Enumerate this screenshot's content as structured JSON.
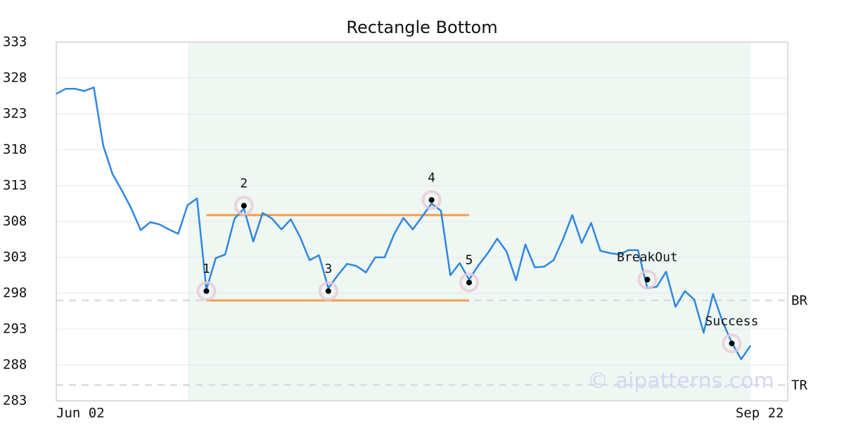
{
  "chart_data": {
    "type": "line",
    "title": "Rectangle Bottom",
    "categories": [
      "Jun 02",
      null,
      null,
      null,
      null,
      null,
      null,
      null,
      null,
      null,
      null,
      null,
      null,
      null,
      null,
      null,
      null,
      null,
      null,
      null,
      null,
      null,
      null,
      null,
      null,
      null,
      null,
      null,
      null,
      null,
      null,
      null,
      null,
      null,
      null,
      null,
      null,
      null,
      null,
      null,
      null,
      null,
      null,
      null,
      null,
      null,
      null,
      null,
      null,
      null,
      null,
      null,
      null,
      null,
      null,
      null,
      null,
      null,
      null,
      null,
      null,
      null,
      null,
      null,
      null,
      null,
      null,
      null,
      null,
      null,
      null,
      null,
      null,
      null,
      "Sep 22"
    ],
    "series": [
      {
        "color": "#2f86e0",
        "values": [
          325.8,
          326.5,
          326.5,
          326.2,
          326.7,
          318.6,
          314.6,
          312.3,
          309.8,
          306.8,
          307.9,
          307.6,
          306.9,
          306.3,
          310.3,
          311.2,
          298.5,
          302.9,
          303.4,
          308.4,
          309.8,
          305.2,
          309.2,
          308.4,
          306.9,
          308.3,
          305.8,
          302.6,
          303.3,
          298.7,
          300.5,
          302.1,
          301.8,
          300.9,
          303.0,
          303.0,
          306.2,
          308.5,
          306.9,
          308.7,
          310.5,
          309.5,
          300.5,
          302.2,
          299.9,
          301.9,
          303.6,
          305.6,
          303.8,
          299.8,
          304.8,
          301.6,
          301.7,
          302.6,
          305.5,
          308.9,
          305.0,
          307.8,
          303.9,
          303.6,
          303.4,
          304.0,
          304.0,
          298.7,
          298.9,
          301.0,
          296.1,
          298.3,
          297.1,
          292.5,
          297.9,
          294.1,
          291.1,
          288.8,
          290.7
        ]
      }
    ],
    "ylim": [
      283,
      333
    ],
    "yticks": [
      283,
      288,
      293,
      298,
      303,
      308,
      313,
      318,
      323,
      328,
      333
    ],
    "grid": true,
    "shade_range": [
      14,
      74
    ],
    "shade_color": "#eef7f2",
    "levels": [
      {
        "value": 308.9,
        "start": 16,
        "end": 44,
        "color": "#f39c4a"
      },
      {
        "value": 297.0,
        "start": 16,
        "end": 44,
        "color": "#f39c4a"
      }
    ],
    "reference_lines": [
      {
        "label": "BR",
        "value": 297.0
      },
      {
        "label": "TR",
        "value": 285.2
      }
    ],
    "points": [
      {
        "label": "1",
        "index": 16,
        "value": 298.3
      },
      {
        "label": "2",
        "index": 20,
        "value": 310.2
      },
      {
        "label": "3",
        "index": 29,
        "value": 298.3
      },
      {
        "label": "4",
        "index": 40,
        "value": 311.0
      },
      {
        "label": "5",
        "index": 44,
        "value": 299.5
      },
      {
        "label": "BreakOut",
        "index": 63,
        "value": 299.9
      },
      {
        "label": "Success",
        "index": 72,
        "value": 291.0
      }
    ],
    "watermark": "© aipatterns.com"
  }
}
